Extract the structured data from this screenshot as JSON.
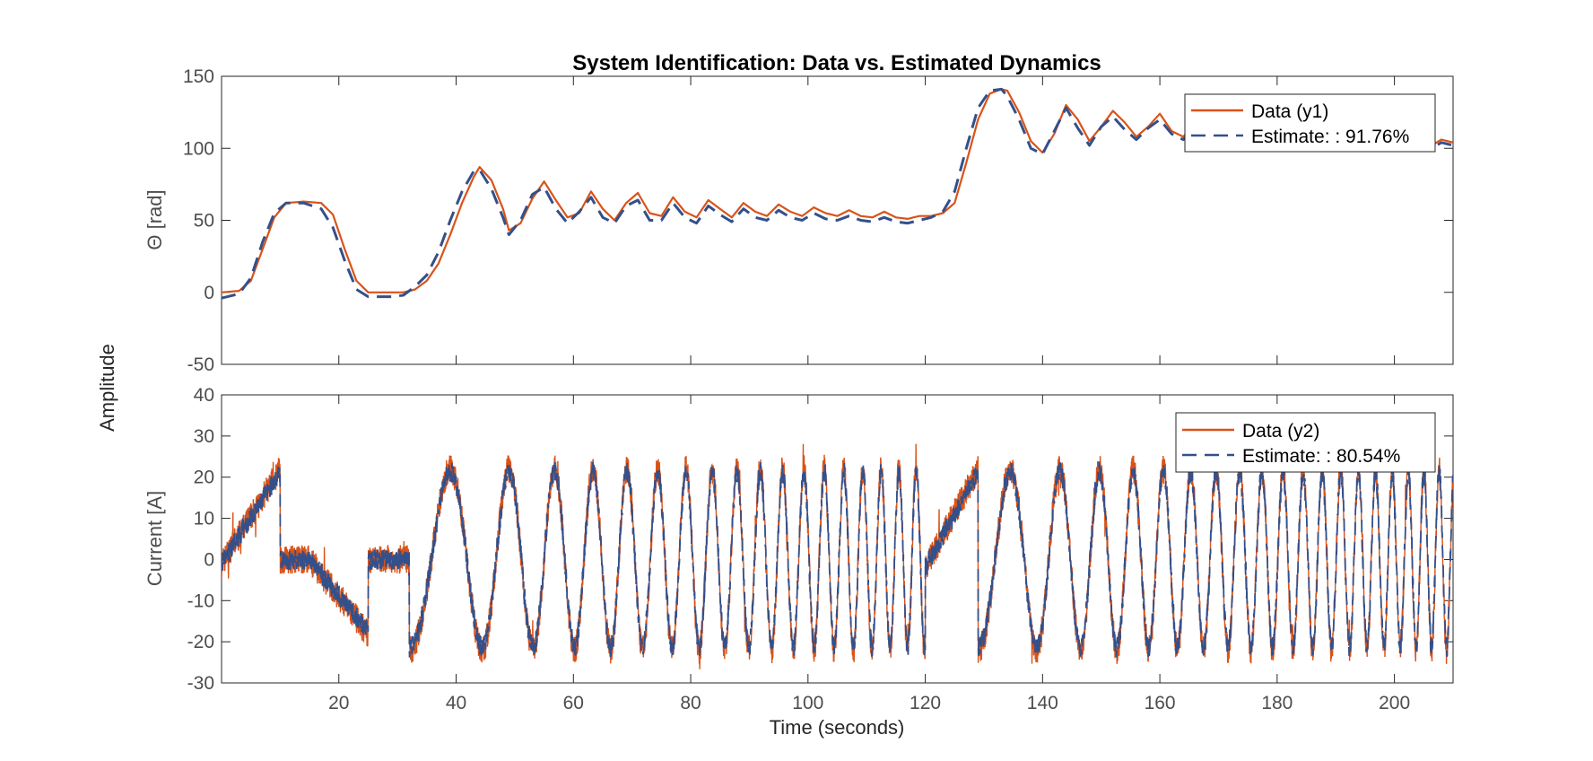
{
  "figure": {
    "title": "System Identification: Data vs. Estimated Dynamics",
    "xlabel": "Time (seconds)",
    "shared_ylabel": "Amplitude"
  },
  "colors": {
    "data": "#d95319",
    "estimate": "#34508a",
    "axis": "#262626"
  },
  "chart_data": [
    {
      "type": "line",
      "title": "System Identification: Data vs. Estimated Dynamics",
      "xlabel": "",
      "ylabel": "Θ [rad]",
      "xlim": [
        0,
        210
      ],
      "ylim": [
        -50,
        150
      ],
      "yticks": [
        -50,
        0,
        50,
        100,
        150
      ],
      "xticks": [
        20,
        40,
        60,
        80,
        100,
        120,
        140,
        160,
        180,
        200
      ],
      "show_xtick_labels": false,
      "legend": {
        "position": "top-right",
        "entries": [
          "Data (y1)",
          "Estimate: : 91.76%"
        ]
      },
      "series": [
        {
          "name": "Data (y1)",
          "style": "solid",
          "x": [
            0,
            3,
            5,
            7,
            9,
            11,
            14,
            17,
            19,
            21,
            23,
            25,
            27,
            29,
            31,
            33,
            35,
            37,
            39,
            41,
            43,
            44,
            46,
            48,
            49,
            51,
            53,
            55,
            57,
            59,
            61,
            63,
            65,
            67,
            69,
            71,
            73,
            75,
            77,
            79,
            81,
            83,
            85,
            87,
            89,
            91,
            93,
            95,
            97,
            99,
            101,
            103,
            105,
            107,
            109,
            111,
            113,
            115,
            117,
            119,
            121,
            123,
            125,
            127,
            129,
            131,
            133,
            134,
            136,
            138,
            140,
            142,
            144,
            146,
            148,
            150,
            152,
            154,
            156,
            158,
            160,
            162,
            164,
            166,
            168,
            170,
            172,
            174,
            176,
            178,
            180,
            182,
            184,
            186,
            188,
            190,
            192,
            194,
            196,
            198,
            200,
            202,
            204,
            206,
            208,
            210
          ],
          "y": [
            0,
            1,
            8,
            30,
            52,
            62,
            63,
            62,
            54,
            30,
            8,
            0,
            0,
            0,
            0,
            2,
            8,
            20,
            40,
            62,
            80,
            87,
            78,
            58,
            43,
            48,
            65,
            77,
            64,
            52,
            55,
            70,
            58,
            50,
            62,
            69,
            55,
            53,
            66,
            56,
            52,
            64,
            58,
            52,
            62,
            56,
            53,
            61,
            56,
            53,
            59,
            55,
            53,
            57,
            53,
            52,
            56,
            52,
            51,
            53,
            53,
            55,
            62,
            90,
            120,
            138,
            141,
            140,
            125,
            105,
            97,
            110,
            130,
            120,
            105,
            115,
            126,
            118,
            108,
            115,
            124,
            112,
            108,
            118,
            112,
            105,
            110,
            103,
            108,
            110,
            102,
            107,
            104,
            101,
            106,
            102,
            104,
            103,
            101,
            104,
            105,
            102,
            103,
            101,
            106,
            104
          ]
        },
        {
          "name": "Estimate: : 91.76%",
          "style": "dashed",
          "x": [
            0,
            3,
            5,
            7,
            9,
            11,
            14,
            17,
            19,
            21,
            23,
            25,
            27,
            29,
            31,
            33,
            35,
            37,
            39,
            41,
            43,
            44,
            46,
            48,
            49,
            51,
            53,
            55,
            57,
            59,
            61,
            63,
            65,
            67,
            69,
            71,
            73,
            75,
            77,
            79,
            81,
            83,
            85,
            87,
            89,
            91,
            93,
            95,
            97,
            99,
            101,
            103,
            105,
            107,
            109,
            111,
            113,
            115,
            117,
            119,
            121,
            123,
            125,
            127,
            129,
            131,
            133,
            134,
            136,
            138,
            140,
            142,
            144,
            146,
            148,
            150,
            152,
            154,
            156,
            158,
            160,
            162,
            164,
            166,
            168,
            170,
            172,
            174,
            176,
            178,
            180,
            182,
            184,
            186,
            188,
            190,
            192,
            194,
            196,
            198,
            200,
            202,
            204,
            206,
            208,
            210
          ],
          "y": [
            -4,
            -1,
            10,
            35,
            55,
            62,
            62,
            58,
            45,
            22,
            2,
            -3,
            -3,
            -3,
            -2,
            4,
            12,
            28,
            50,
            70,
            84,
            85,
            72,
            52,
            40,
            50,
            68,
            73,
            58,
            48,
            56,
            66,
            52,
            48,
            60,
            64,
            50,
            50,
            62,
            52,
            48,
            60,
            54,
            49,
            58,
            52,
            50,
            57,
            52,
            50,
            55,
            51,
            50,
            53,
            50,
            49,
            52,
            49,
            48,
            50,
            52,
            56,
            70,
            100,
            128,
            140,
            141,
            136,
            120,
            100,
            96,
            112,
            128,
            114,
            102,
            115,
            122,
            113,
            106,
            114,
            120,
            110,
            106,
            114,
            110,
            103,
            108,
            101,
            106,
            108,
            100,
            105,
            102,
            99,
            104,
            100,
            102,
            101,
            99,
            102,
            103,
            100,
            101,
            99,
            104,
            102
          ]
        }
      ]
    },
    {
      "type": "line",
      "xlabel": "Time (seconds)",
      "ylabel": "Current [A]",
      "xlim": [
        0,
        210
      ],
      "ylim": [
        -30,
        40
      ],
      "yticks": [
        -30,
        -20,
        -10,
        0,
        10,
        20,
        30,
        40
      ],
      "xticks": [
        20,
        40,
        60,
        80,
        100,
        120,
        140,
        160,
        180,
        200
      ],
      "show_xtick_labels": true,
      "legend": {
        "position": "top-right",
        "entries": [
          "Data (y2)",
          "Estimate: : 80.54%"
        ]
      },
      "series": [
        {
          "name": "Data (y2)",
          "style": "solid",
          "amplitude_approx": 22,
          "peak_range": [
            22,
            30
          ],
          "trough_range": [
            -20,
            -25
          ],
          "description_segments": [
            {
              "from": 0,
              "to": 10,
              "shape": "ramp",
              "start": -1,
              "end": 22
            },
            {
              "from": 10,
              "to": 15,
              "shape": "flat",
              "value": 0
            },
            {
              "from": 15,
              "to": 25,
              "shape": "ramp",
              "start": 0,
              "end": -18
            },
            {
              "from": 25,
              "to": 32,
              "shape": "flat",
              "value": 0
            },
            {
              "from": 32,
              "to": 120,
              "shape": "chirp",
              "freq_start": 0.06,
              "freq_end": 0.35,
              "amplitude": 22
            },
            {
              "from": 120,
              "to": 129,
              "shape": "ramp",
              "start": -2,
              "end": 22
            },
            {
              "from": 129,
              "to": 210,
              "shape": "chirp",
              "freq_start": 0.08,
              "freq_end": 0.4,
              "amplitude": 22
            }
          ]
        },
        {
          "name": "Estimate: : 80.54%",
          "style": "dashed",
          "amplitude_approx": 21
        }
      ]
    }
  ]
}
